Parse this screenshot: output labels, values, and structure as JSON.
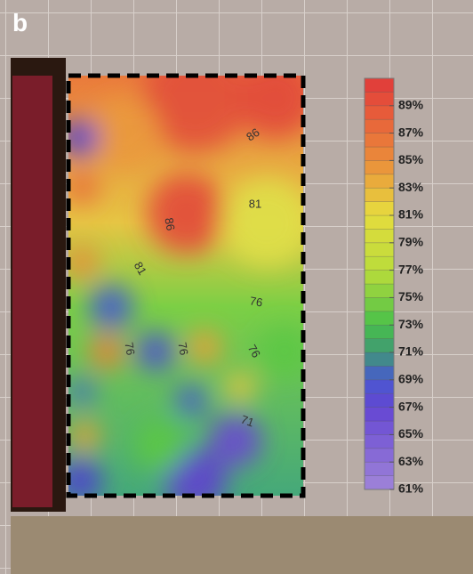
{
  "panel_label": "b",
  "chart_data": {
    "type": "contour",
    "colorbar_lim": [
      61,
      91
    ],
    "colorbar_ticks": [
      {
        "value": 61,
        "label": "61%"
      },
      {
        "value": 63,
        "label": "63%"
      },
      {
        "value": 65,
        "label": "65%"
      },
      {
        "value": 67,
        "label": "67%"
      },
      {
        "value": 69,
        "label": "69%"
      },
      {
        "value": 71,
        "label": "71%"
      },
      {
        "value": 73,
        "label": "73%"
      },
      {
        "value": 75,
        "label": "75%"
      },
      {
        "value": 77,
        "label": "77%"
      },
      {
        "value": 79,
        "label": "79%"
      },
      {
        "value": 81,
        "label": "81%"
      },
      {
        "value": 83,
        "label": "83%"
      },
      {
        "value": 85,
        "label": "85%"
      },
      {
        "value": 87,
        "label": "87%"
      },
      {
        "value": 89,
        "label": "89%"
      }
    ],
    "contour_labels": [
      86,
      81,
      86,
      81,
      76,
      76,
      76,
      76,
      71
    ]
  }
}
